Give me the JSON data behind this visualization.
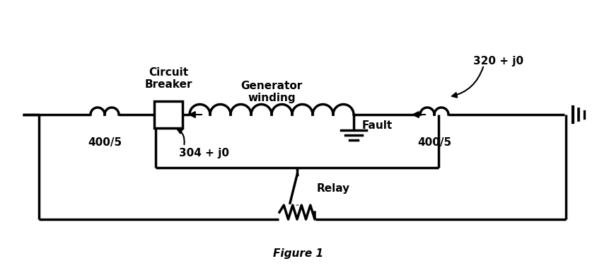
{
  "background_color": "#ffffff",
  "line_color": "#000000",
  "line_width": 2.5,
  "labels": {
    "circuit_breaker": "Circuit\nBreaker",
    "generator_winding": "Generator\nwinding",
    "current_320": "320 + j0",
    "current_304": "304 + j0",
    "fault": "Fault",
    "ct_left": "400/5",
    "ct_right": "400/5",
    "relay": "Relay",
    "figure": "Figure 1"
  },
  "figsize": [
    8.44,
    3.76
  ],
  "dpi": 100
}
